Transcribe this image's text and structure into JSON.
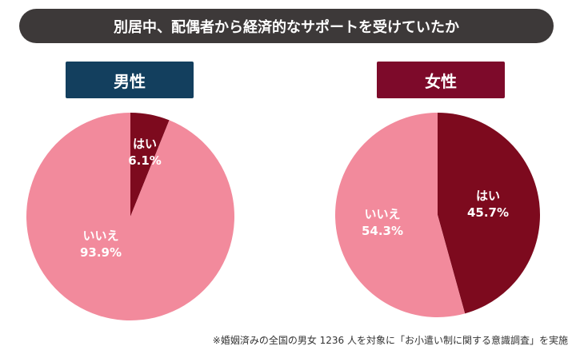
{
  "title": "別居中、配偶者から経済的なサポートを受けていたか",
  "labels": {
    "male": "男性",
    "female": "女性"
  },
  "note": "※婚姻済みの全国の男女 1236 人を対象に「お小遣い制に関する意識調査」を実施",
  "colors": {
    "title_bg": "#3d3939",
    "male_label_bg": "#133f5e",
    "female_label_bg": "#7d0a2a",
    "yes": "#7d0a1e",
    "no": "#f28a9c"
  },
  "chart_data": [
    {
      "type": "pie",
      "title": "男性",
      "slices": [
        {
          "label": "はい",
          "value": 6.1,
          "display": "6.1%",
          "color": "#7d0a1e"
        },
        {
          "label": "いいえ",
          "value": 93.9,
          "display": "93.9%",
          "color": "#f28a9c"
        }
      ]
    },
    {
      "type": "pie",
      "title": "女性",
      "slices": [
        {
          "label": "はい",
          "value": 45.7,
          "display": "45.7%",
          "color": "#7d0a1e"
        },
        {
          "label": "いいえ",
          "value": 54.3,
          "display": "54.3%",
          "color": "#f28a9c"
        }
      ]
    }
  ]
}
